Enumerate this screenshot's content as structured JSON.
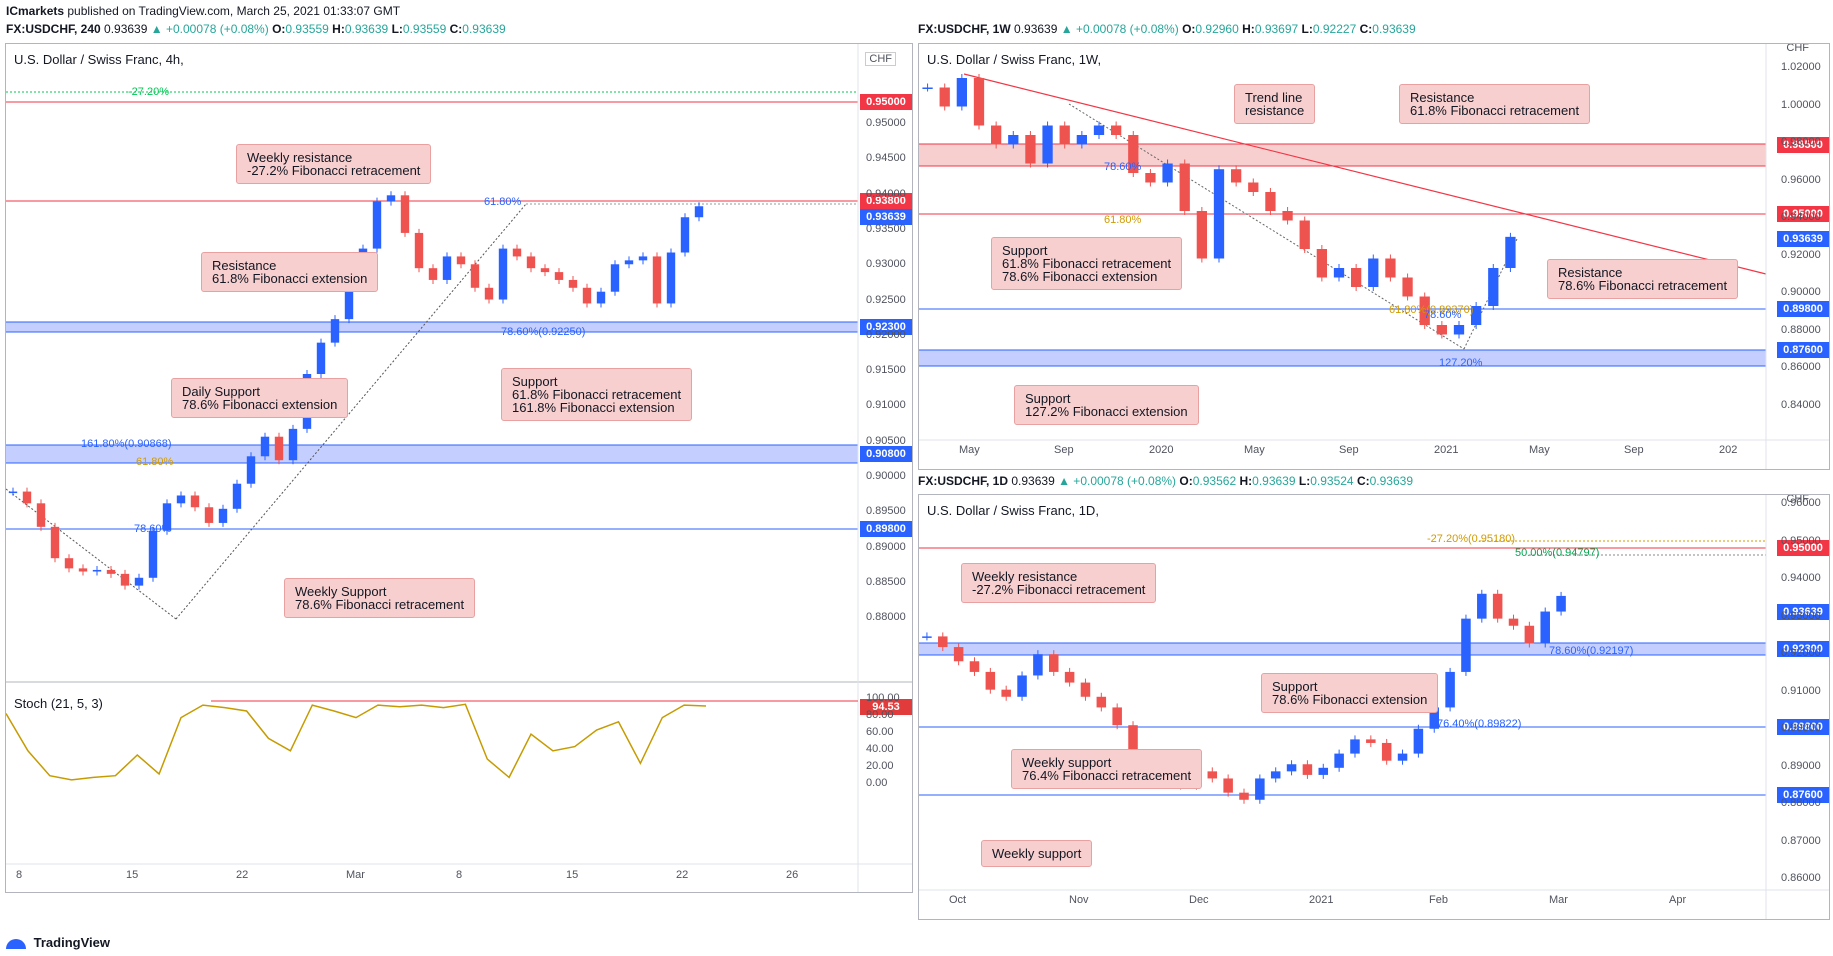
{
  "header": {
    "author": "ICmarkets",
    "published": "published on TradingView.com, March 25, 2021 01:33:07 GMT",
    "charts": [
      {
        "symbol": "FX:USDCHF, 240",
        "price": "0.93639",
        "change": "▲ +0.00078 (+0.08%)",
        "o": "0.93559",
        "h": "0.93639",
        "l": "0.93559",
        "c": "0.93639"
      },
      {
        "symbol": "FX:USDCHF, 1W",
        "price": "0.93639",
        "change": "▲ +0.00078 (+0.08%)",
        "o": "0.92960",
        "h": "0.93697",
        "l": "0.92227",
        "c": "0.93639"
      },
      {
        "symbol": "FX:USDCHF, 1D",
        "price": "0.93639",
        "change": "▲ +0.00078 (+0.08%)",
        "o": "0.93562",
        "h": "0.93639",
        "l": "0.93524",
        "c": "0.93639"
      }
    ]
  },
  "panels": {
    "h4": {
      "title": "U.S. Dollar / Swiss Franc, 4h,",
      "currency": "CHF",
      "fib_labels": {
        "neg27": "-27.20%",
        "f618": "61.80%",
        "f786": "78.60%(0.92250)",
        "f1618": "161.80%(0.90868)",
        "f618b": "61.80%",
        "f786b": "78.60%"
      },
      "tags": {
        "t1": "0.95000",
        "t2": "0.93800",
        "t3": "0.93639",
        "t4": "0.92300",
        "t5": "0.90800",
        "t6": "0.89800"
      },
      "notes": {
        "n1": "Weekly resistance\n-27.2% Fibonacci retracement",
        "n2": "Resistance\n61.8% Fibonacci extension",
        "n3": "Daily Support\n78.6% Fibonacci extension",
        "n4": "Support\n61.8% Fibonacci retracement\n161.8% Fibonacci extension",
        "n5": "Weekly Support\n78.6% Fibonacci retracement"
      },
      "yticks": [
        "0.95000",
        "0.94500",
        "0.94000",
        "0.93500",
        "0.93000",
        "0.92500",
        "0.92000",
        "0.91500",
        "0.91000",
        "0.90500",
        "0.90000",
        "0.89500",
        "0.89000",
        "0.88500",
        "0.88000"
      ],
      "xticks": [
        "8",
        "15",
        "22",
        "Mar",
        "8",
        "15",
        "22",
        "26"
      ],
      "stoch": {
        "title": "Stoch (21, 5, 3)",
        "value": "94.53",
        "yticks": [
          "100.00",
          "80.00",
          "60.00",
          "40.00",
          "20.00",
          "0.00"
        ]
      }
    },
    "w1": {
      "title": "U.S. Dollar / Swiss Franc, 1W,",
      "currency": "CHF",
      "fib_labels": {
        "f786": "78.60%",
        "f618": "61.80%",
        "f618b": "61.80%(0.89370)",
        "f786b": "78.60%",
        "f1272": "127.20%"
      },
      "tags": {
        "t1": "0.98500",
        "t2": "0.95000",
        "t3": "0.93639",
        "t4": "0.89800",
        "t5": "0.87600"
      },
      "notes": {
        "n1": "Trend line\nresistance",
        "n2": "Resistance\n61.8% Fibonacci retracement",
        "n3": "Support\n61.8% Fibonacci retracement\n78.6% Fibonacci extension",
        "n4": "Resistance\n78.6% Fibonacci retracement",
        "n5": "Support\n127.2% Fibonacci extension"
      },
      "yticks": [
        "1.02000",
        "1.00000",
        "0.98000",
        "0.96000",
        "0.94000",
        "0.92000",
        "0.90000",
        "0.88000",
        "0.86000",
        "0.84000"
      ],
      "xticks": [
        "May",
        "Sep",
        "2020",
        "May",
        "Sep",
        "2021",
        "May",
        "Sep",
        "202"
      ]
    },
    "d1": {
      "title": "U.S. Dollar / Swiss Franc, 1D,",
      "currency": "CHF",
      "fib_labels": {
        "neg27": "-27.20%(0.95180)",
        "f50": "50.00%(0.94797)",
        "f786": "78.60%(0.92197)",
        "f764": "76.40%(0.89822)"
      },
      "tags": {
        "t1": "0.95000",
        "t2": "0.93639",
        "t3": "0.92300",
        "t4": "0.89800",
        "t5": "0.87600"
      },
      "notes": {
        "n1": "Weekly resistance\n-27.2% Fibonacci retracement",
        "n2": "Support\n78.6% Fibonacci extension",
        "n3": "Weekly support\n76.4% Fibonacci retracement",
        "n4": "Weekly support"
      },
      "yticks": [
        "0.96000",
        "0.95000",
        "0.94000",
        "0.93000",
        "0.92000",
        "0.91000",
        "0.90000",
        "0.89000",
        "0.88000",
        "0.87000",
        "0.86000"
      ],
      "xticks": [
        "Oct",
        "Nov",
        "Dec",
        "2021",
        "Feb",
        "Mar",
        "Apr"
      ]
    }
  },
  "footer": {
    "brand": "TradingView"
  },
  "colors": {
    "up": "#2962ff",
    "down": "#ef5350",
    "resistance": "#f23645",
    "support": "#2962ff",
    "zone_red": "#f7cfcf",
    "zone_blue": "#c5cfff",
    "stoch": "#c69b00"
  },
  "chart_data": [
    {
      "type": "candlestick",
      "title": "U.S. Dollar / Swiss Franc, 4h,",
      "ylim": [
        0.878,
        0.952
      ],
      "levels": {
        "resistance": [
          0.95,
          0.938
        ],
        "support": [
          0.923,
          0.908,
          0.898
        ]
      },
      "series": [
        {
          "name": "USDCHF",
          "values": [
            0.9,
            0.8985,
            0.8955,
            0.8915,
            0.8902,
            0.8898,
            0.89,
            0.8895,
            0.888,
            0.889,
            0.895,
            0.8985,
            0.8995,
            0.898,
            0.896,
            0.8978,
            0.901,
            0.9045,
            0.907,
            0.904,
            0.908,
            0.915,
            0.919,
            0.922,
            0.9285,
            0.931,
            0.937,
            0.9378,
            0.933,
            0.9285,
            0.927,
            0.93,
            0.929,
            0.926,
            0.9245,
            0.931,
            0.93,
            0.9285,
            0.928,
            0.927,
            0.926,
            0.924,
            0.9255,
            0.929,
            0.9295,
            0.93,
            0.924,
            0.9305,
            0.935,
            0.9364
          ]
        }
      ]
    },
    {
      "type": "line",
      "title": "Stoch (21, 5, 3)",
      "ylim": [
        0,
        100
      ],
      "series": [
        {
          "name": "Stoch (21, 5, 3)",
          "values": [
            85,
            40,
            10,
            5,
            8,
            10,
            35,
            12,
            80,
            95,
            92,
            88,
            55,
            40,
            95,
            88,
            80,
            95,
            93,
            95,
            92,
            96,
            30,
            8,
            60,
            40,
            45,
            65,
            75,
            25,
            80,
            95,
            94
          ]
        }
      ]
    },
    {
      "type": "candlestick",
      "title": "U.S. Dollar / Swiss Franc, 1W,",
      "ylim": [
        0.83,
        1.03
      ],
      "levels": {
        "resistance": [
          0.985,
          0.95
        ],
        "support": [
          0.898,
          0.876
        ]
      },
      "series": [
        {
          "name": "USDCHF",
          "values": [
            1.015,
            1.005,
            1.02,
            0.995,
            0.985,
            0.99,
            0.975,
            0.995,
            0.985,
            0.99,
            0.995,
            0.99,
            0.97,
            0.965,
            0.975,
            0.95,
            0.925,
            0.972,
            0.965,
            0.96,
            0.95,
            0.945,
            0.93,
            0.915,
            0.92,
            0.91,
            0.925,
            0.915,
            0.905,
            0.89,
            0.885,
            0.89,
            0.9,
            0.92,
            0.9364
          ]
        }
      ]
    },
    {
      "type": "candlestick",
      "title": "U.S. Dollar / Swiss Franc, 1D,",
      "ylim": [
        0.855,
        0.962
      ],
      "levels": {
        "resistance": [
          0.95
        ],
        "support": [
          0.923,
          0.898,
          0.876
        ]
      },
      "series": [
        {
          "name": "USDCHF",
          "values": [
            0.925,
            0.922,
            0.918,
            0.915,
            0.91,
            0.908,
            0.914,
            0.92,
            0.915,
            0.912,
            0.908,
            0.905,
            0.9,
            0.892,
            0.888,
            0.885,
            0.883,
            0.887,
            0.885,
            0.881,
            0.879,
            0.885,
            0.887,
            0.889,
            0.886,
            0.888,
            0.892,
            0.896,
            0.895,
            0.89,
            0.892,
            0.899,
            0.905,
            0.915,
            0.93,
            0.937,
            0.93,
            0.928,
            0.923,
            0.932,
            0.9364
          ]
        }
      ]
    }
  ]
}
